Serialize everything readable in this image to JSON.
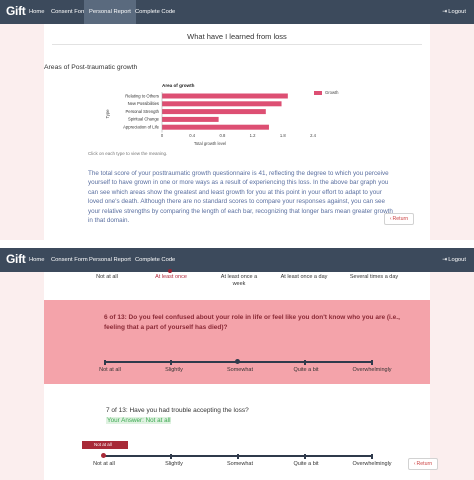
{
  "nav": {
    "logo": "Gift",
    "items": [
      "Home",
      "Consent Form",
      "Personal Report",
      "Complete Code"
    ],
    "active_index": 2,
    "logout": "Logout"
  },
  "report": {
    "heading": "What have I learned from loss",
    "section_title": "Areas of Post-traumatic growth",
    "footnote": "Click on each type to view the meaning.",
    "paragraph": "The total score of your posttraumatic growth questionnaire is 41, reflecting the degree to which you perceive yourself to have grown in one or more ways as a result of experiencing this loss. In the above bar graph you can see which areas show the greatest and least growth for you at this point in your effort to adapt to your loved one's death. Although there are no standard scores to compare your responses against, you can see your relative strengths by comparing the length of each bar, recognizing that longer bars mean greater growth in that domain.",
    "return": "Return"
  },
  "chart_data": {
    "type": "bar",
    "orientation": "horizontal",
    "title": "Area of growth",
    "xlabel": "Total growth level",
    "ylabel": "Type",
    "categories": [
      "Relating to Others",
      "New Possibilities",
      "Personal Strength",
      "Spiritual Change",
      "Appreciation of Life"
    ],
    "series": [
      {
        "name": "Growth",
        "values": [
          2.0,
          1.9,
          1.65,
          0.9,
          1.7
        ]
      }
    ],
    "xlim": [
      0,
      2.4
    ],
    "xticks": [
      "0",
      "0.4",
      "0.8",
      "1.2",
      "1.8",
      "2.4"
    ],
    "color": "#dd4f73",
    "legend": "top-right"
  },
  "survey": {
    "scale_top": [
      "Not at all",
      "At least once",
      "At least once a week",
      "At least once a day",
      "Several times a day"
    ],
    "q6": {
      "text": "6 of 13:  Do you feel confused about your role in life or feel like you don't know who you are (i.e., feeling that a part of yourself has died)?",
      "scale": [
        "Not at all",
        "Slightly",
        "Somewhat",
        "Quite a bit",
        "Overwhelmingly"
      ],
      "selected": "Somewhat"
    },
    "q7": {
      "text": "7 of 13: Have you had trouble accepting the loss?",
      "answer": "Your Answer: Not at all",
      "badge": "Not at all",
      "scale": [
        "Not at all",
        "Slightly",
        "Somewhat",
        "Quite a bit",
        "Overwhelmingly"
      ],
      "selected": "Not at all"
    },
    "return": "Return"
  },
  "colors": {
    "navbar": "#3c4a5c",
    "accent": "#dd4f73",
    "danger": "#a82a38",
    "question_band": "#f4a3aa",
    "paragraph_text": "#5a6fa0",
    "answer_text": "#3aa84f"
  }
}
